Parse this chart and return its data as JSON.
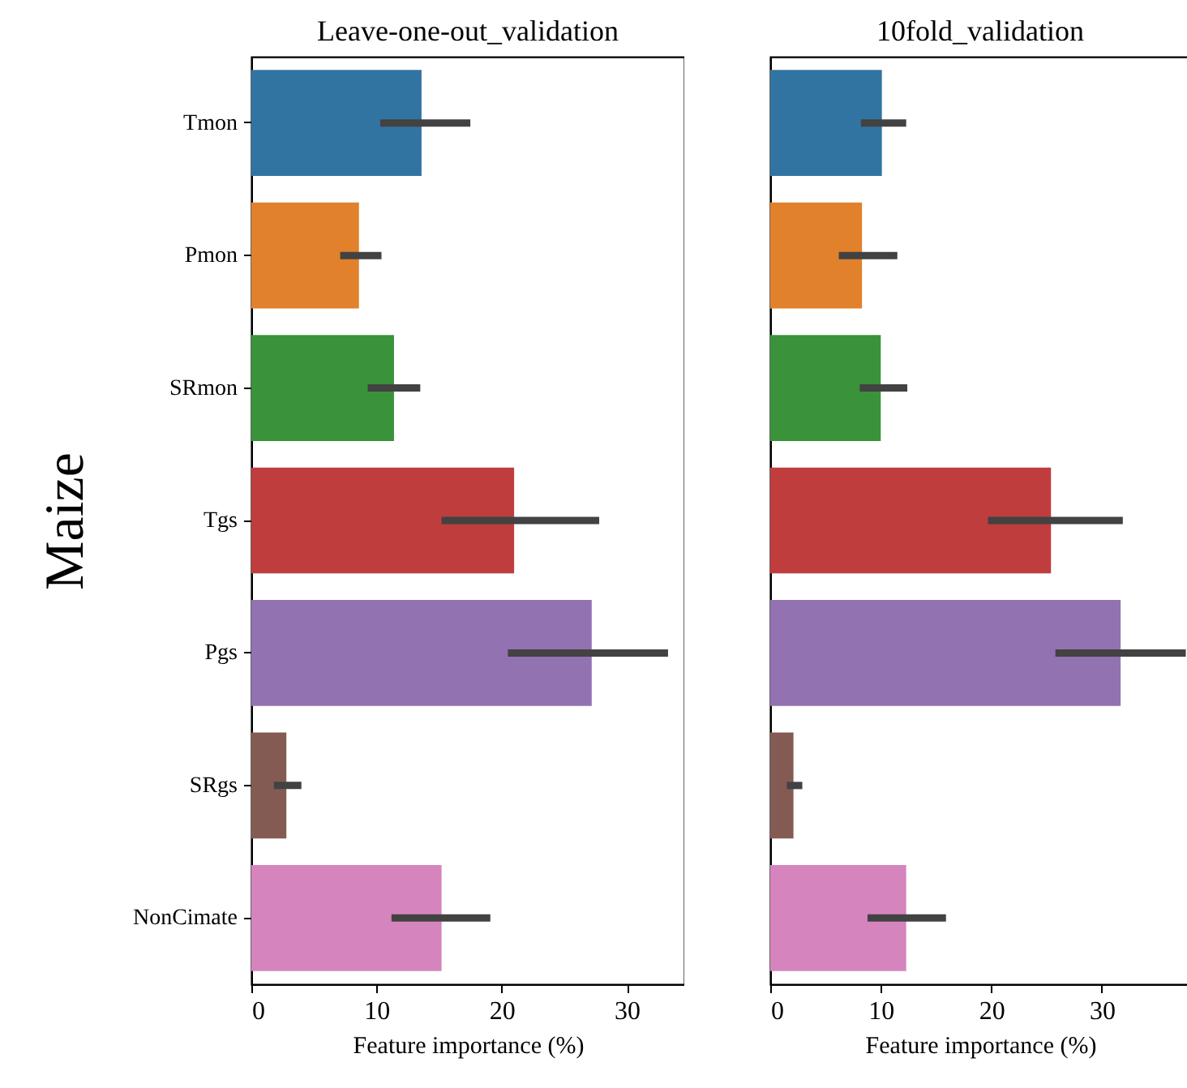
{
  "chart_data": [
    {
      "type": "bar",
      "orientation": "horizontal",
      "title": "Leave-one-out_validation",
      "xlabel": "Feature importance (%)",
      "ylabel": "Maize",
      "categories": [
        "Tmon",
        "Pmon",
        "SRmon",
        "Tgs",
        "Pgs",
        "SRgs",
        "NonCimate"
      ],
      "values": [
        13.6,
        8.6,
        11.4,
        21.0,
        27.2,
        2.8,
        15.2
      ],
      "colors": [
        "#3274a1",
        "#e1812c",
        "#3a923a",
        "#c03d3e",
        "#9372b2",
        "#845b53",
        "#d684bd"
      ],
      "errors": [
        [
          10.3,
          17.5
        ],
        [
          7.1,
          10.4
        ],
        [
          9.3,
          13.5
        ],
        [
          15.2,
          27.8
        ],
        [
          20.5,
          33.3
        ],
        [
          1.8,
          4.0
        ],
        [
          11.2,
          19.1
        ]
      ],
      "xlim": [
        0,
        34.6
      ],
      "xticks": [
        0,
        10,
        20,
        30
      ]
    },
    {
      "type": "bar",
      "orientation": "horizontal",
      "title": "10fold_validation",
      "xlabel": "Feature importance (%)",
      "tick_labels": "x",
      "categories": [
        null,
        null,
        null,
        null,
        null,
        null,
        null
      ],
      "values": [
        10.1,
        8.3,
        10.0,
        25.4,
        31.7,
        2.1,
        12.3
      ],
      "colors": [
        "#3274a1",
        "#e1812c",
        "#3a923a",
        "#c03d3e",
        "#9372b2",
        "#845b53",
        "#d684bd"
      ],
      "errors": [
        [
          8.2,
          12.3
        ],
        [
          6.2,
          11.5
        ],
        [
          8.1,
          12.4
        ],
        [
          19.7,
          31.9
        ],
        [
          25.8,
          37.6
        ],
        [
          1.5,
          2.9
        ],
        [
          8.8,
          15.9
        ]
      ],
      "xlim": [
        0,
        38
      ],
      "xticks": [
        0,
        10,
        20,
        30
      ]
    }
  ]
}
